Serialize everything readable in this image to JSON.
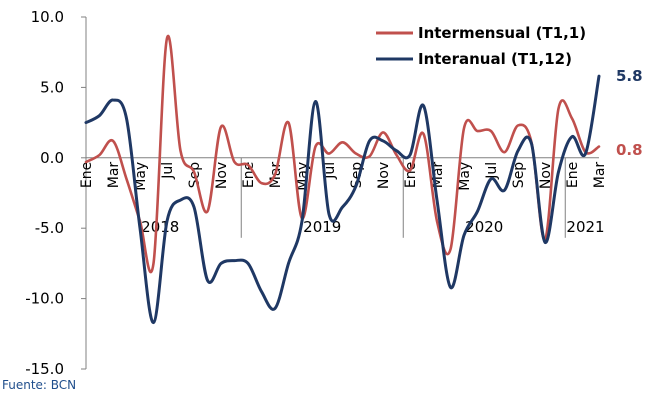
{
  "chart_data": {
    "type": "line",
    "x": [
      "Ene 2018",
      "Feb 2018",
      "Mar 2018",
      "Abr 2018",
      "May 2018",
      "Jun 2018",
      "Jul 2018",
      "Ago 2018",
      "Sep 2018",
      "Oct 2018",
      "Nov 2018",
      "Dic 2018",
      "Ene 2019",
      "Feb 2019",
      "Mar 2019",
      "Abr 2019",
      "May 2019",
      "Jun 2019",
      "Jul 2019",
      "Ago 2019",
      "Sep 2019",
      "Oct 2019",
      "Nov 2019",
      "Dic 2019",
      "Ene 2020",
      "Feb 2020",
      "Mar 2020",
      "Abr 2020",
      "May 2020",
      "Jun 2020",
      "Jul 2020",
      "Ago 2020",
      "Sep 2020",
      "Oct 2020",
      "Nov 2020",
      "Dic 2020",
      "Ene 2021",
      "Feb 2021",
      "Mar 2021"
    ],
    "series": [
      {
        "name": "Intermensual (T1,1)",
        "color": "#c0504d",
        "values": [
          -0.3,
          0.2,
          1.2,
          -1.5,
          -4.5,
          -7.5,
          8.5,
          0.5,
          -1.0,
          -3.8,
          2.2,
          -0.3,
          -0.5,
          -1.8,
          -1.2,
          2.5,
          -4.3,
          0.8,
          0.3,
          1.1,
          0.3,
          0.1,
          1.8,
          0.2,
          -0.9,
          1.7,
          -4.5,
          -6.5,
          2.1,
          1.9,
          1.9,
          0.4,
          2.3,
          1.1,
          -5.8,
          3.5,
          2.8,
          0.4,
          0.8
        ]
      },
      {
        "name": "Interanual (T1,12)",
        "color": "#1f3864",
        "values": [
          2.5,
          3.0,
          4.1,
          2.8,
          -5.0,
          -11.7,
          -4.5,
          -3.0,
          -3.5,
          -8.7,
          -7.5,
          -7.3,
          -7.5,
          -9.5,
          -10.7,
          -7.5,
          -4.5,
          4.0,
          -4.0,
          -3.5,
          -2.0,
          1.2,
          1.2,
          0.5,
          0.2,
          3.7,
          -3.0,
          -9.2,
          -5.5,
          -3.8,
          -1.5,
          -2.3,
          0.5,
          1.0,
          -6.0,
          -1.0,
          1.5,
          0.3,
          5.8
        ]
      }
    ],
    "xtick_labels": [
      "Ene",
      "Mar",
      "May",
      "Jul",
      "Sep",
      "Nov",
      "Ene",
      "Mar",
      "May",
      "Jul",
      "Sep",
      "Nov",
      "Ene",
      "Mar",
      "May",
      "Jul",
      "Sep",
      "Nov",
      "Ene",
      "Mar"
    ],
    "year_labels": [
      "2018",
      "2019",
      "2020",
      "2021"
    ],
    "yticks": [
      "10.0",
      "5.0",
      "0.0",
      "-5.0",
      "-10.0",
      "-15.0"
    ],
    "ylim": [
      -15,
      10
    ],
    "legend_position": "top-right",
    "end_labels": [
      {
        "text": "5.8",
        "color": "#1f3864"
      },
      {
        "text": "0.8",
        "color": "#c0504d"
      }
    ],
    "source": "Fuente: BCN"
  }
}
